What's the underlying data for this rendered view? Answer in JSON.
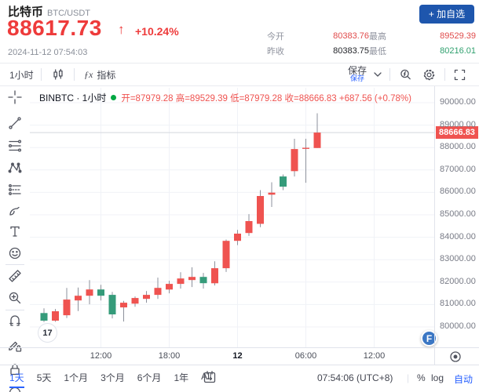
{
  "header": {
    "symbol": "比特币",
    "pair": "BTC/USDT",
    "price": "88617.73",
    "arrow": "↑",
    "change": "+10.24%",
    "timestamp": "2024-11-12 07:54:03",
    "watchlist_button": "+ 加自选",
    "stats": [
      {
        "label": "今开",
        "value": "80383.76",
        "color": "red"
      },
      {
        "label": "最高",
        "value": "89529.39",
        "color": "red"
      },
      {
        "label": "昨收",
        "value": "80383.75",
        "color": "dark"
      },
      {
        "label": "最低",
        "value": "80216.01",
        "color": "green"
      }
    ]
  },
  "toolbar": {
    "interval": "1小时",
    "fx": "ƒx",
    "indicators": "指标",
    "save": "保存",
    "save_hint": "保存"
  },
  "legend": {
    "series": "BINBTC · 1小时",
    "values": "开=87979.28 高=89529.39 低=87979.28 收=88666.83 +687.56 (+0.78%)"
  },
  "chart_data": {
    "type": "candlestick",
    "symbol": "BINBTC",
    "interval": "1小时",
    "timezone": "UTC+8",
    "up_color": "#ef5350",
    "down_color": "#359b7a",
    "wick_color": "#8d919c",
    "grid": true,
    "price_axis": [
      90000,
      89000,
      88000,
      87000,
      86000,
      85000,
      84000,
      83000,
      82000,
      81000,
      80000
    ],
    "current_price": 88666.83,
    "last_candle_legend": {
      "open": 87979.28,
      "high": 89529.39,
      "low": 87979.28,
      "close": 88666.83,
      "change": "+687.56",
      "change_pct": "+0.78%"
    },
    "time_ticks": [
      {
        "label": "12:00",
        "i": 5
      },
      {
        "label": "18:00",
        "i": 11
      },
      {
        "label": "12",
        "i": 17,
        "bold": true
      },
      {
        "label": "06:00",
        "i": 23
      },
      {
        "label": "12:00",
        "i": 29
      }
    ],
    "times": [
      "07:00",
      "08:00",
      "09:00",
      "10:00",
      "11:00",
      "12:00",
      "13:00",
      "14:00",
      "15:00",
      "16:00",
      "17:00",
      "18:00",
      "19:00",
      "20:00",
      "21:00",
      "22:00",
      "23:00",
      "00:00",
      "01:00",
      "02:00",
      "03:00",
      "04:00",
      "05:00",
      "06:00",
      "07:00"
    ],
    "candles": [
      [
        80620,
        80830,
        80216,
        80280
      ],
      [
        80280,
        80800,
        80230,
        80700
      ],
      [
        80520,
        81740,
        80400,
        81220
      ],
      [
        81180,
        81760,
        80710,
        81390
      ],
      [
        81390,
        82090,
        81010,
        81670
      ],
      [
        81670,
        81880,
        81180,
        81390
      ],
      [
        81430,
        81560,
        80380,
        80560
      ],
      [
        80870,
        81160,
        80240,
        81080
      ],
      [
        81040,
        81360,
        80900,
        81290
      ],
      [
        81250,
        81600,
        81080,
        81430
      ],
      [
        81430,
        82200,
        81250,
        81740
      ],
      [
        81670,
        82060,
        81500,
        81920
      ],
      [
        81920,
        82440,
        81710,
        82160
      ],
      [
        82090,
        82660,
        81780,
        82230
      ],
      [
        82230,
        82410,
        81710,
        81950
      ],
      [
        81950,
        82930,
        81850,
        82620
      ],
      [
        82620,
        83900,
        82450,
        83840
      ],
      [
        83840,
        84330,
        83650,
        84160
      ],
      [
        84190,
        85030,
        84060,
        84720
      ],
      [
        84600,
        86100,
        84450,
        85840
      ],
      [
        85900,
        86450,
        85350,
        85990
      ],
      [
        86710,
        86800,
        86100,
        86255
      ],
      [
        86950,
        88390,
        86710,
        87935
      ],
      [
        87950,
        88390,
        86430,
        87990
      ],
      [
        87979.28,
        89529.39,
        87979.28,
        88666.83
      ]
    ]
  },
  "axis_toolbar": {
    "clock": "07:54:06 (UTC+8)",
    "percent": "%",
    "log": "log",
    "auto": "自动"
  },
  "bottom": {
    "ranges": [
      "1天",
      "5天",
      "1个月",
      "3个月",
      "6个月",
      "1年",
      "All"
    ],
    "active_index": 0
  },
  "watermark": "17",
  "fab_label": "F",
  "icons": {
    "sidebar_tools": [
      "crosshair",
      "trend-line",
      "fib-retracement",
      "xabcd-pattern",
      "forecast",
      "brush",
      "text",
      "emoji",
      "ruler",
      "zoom-in",
      "magnet",
      "drawing-mode-lock",
      "lock-all"
    ],
    "toolbar": [
      "candles-icon",
      "fx-icon",
      "chevron-down-icon",
      "snapshot-icon",
      "gear-icon",
      "fullscreen-icon"
    ],
    "bottom": [
      "go-to-date-icon",
      "scroll-to-realtime-icon"
    ]
  }
}
